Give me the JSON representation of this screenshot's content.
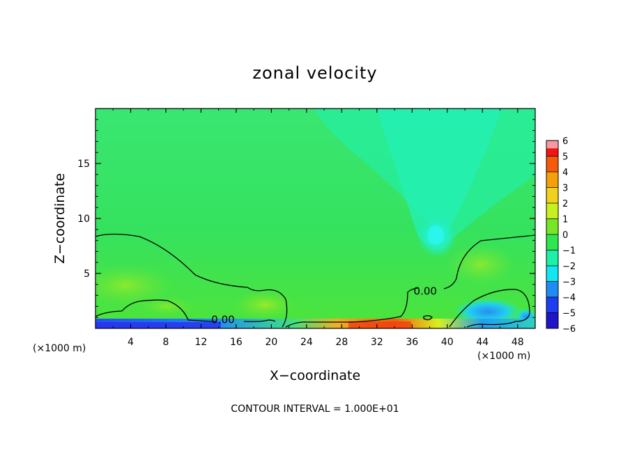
{
  "chart_data": {
    "type": "heatmap",
    "title": "zonal velocity",
    "xlabel": "X−coordinate",
    "ylabel": "Z−coordinate",
    "x_unit": "(×1000 m)",
    "y_unit": "(×1000 m)",
    "xlim": [
      0,
      50
    ],
    "ylim": [
      0,
      20
    ],
    "x_ticks": [
      4,
      8,
      12,
      16,
      20,
      24,
      28,
      32,
      36,
      40,
      44,
      48
    ],
    "x_tick_labels": [
      "4",
      "8",
      "12",
      "16",
      "20",
      "24",
      "28",
      "32",
      "36",
      "40",
      "44",
      "48"
    ],
    "y_ticks": [
      5,
      10,
      15
    ],
    "y_tick_labels": [
      "5",
      "10",
      "15"
    ],
    "colorbar": {
      "levels": [
        6,
        5,
        4,
        3,
        2,
        1,
        0,
        -1,
        -2,
        -3,
        -4,
        -5,
        -6
      ],
      "labels": [
        "6",
        "5",
        "4",
        "3",
        "2",
        "1",
        "0",
        "−1",
        "−2",
        "−3",
        "−4",
        "−5",
        "−6"
      ],
      "colors": [
        "#f59aa0",
        "#f01414",
        "#f55a0a",
        "#f5a00a",
        "#f0d21e",
        "#c8f01e",
        "#78e628",
        "#2ee650",
        "#1ef0a8",
        "#14e6f0",
        "#1e8cf0",
        "#1e3cf0",
        "#1e14c8",
        "#7814b4"
      ]
    },
    "contour_labels": [
      {
        "text": "0.00",
        "x": 14.5,
        "z": 0.8
      },
      {
        "text": "0.00",
        "x": 37.5,
        "z": 3.4
      }
    ],
    "contour_interval_note": "CONTOUR INTERVAL = 1.000E+01"
  }
}
